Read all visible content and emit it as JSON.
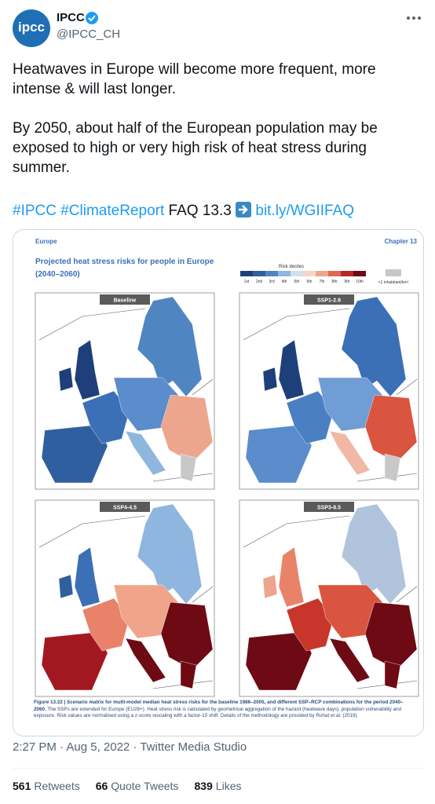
{
  "header": {
    "avatar_label": "ipcc",
    "name": "IPCC",
    "handle": "@IPCC_CH"
  },
  "tweet": {
    "paragraphs": [
      "Heatwaves in Europe will become more frequent, more intense & will last longer.",
      "By 2050, about half of the European population may be exposed to high or very high risk of heat stress during summer."
    ],
    "links": {
      "hashtags": "#IPCC #ClimateReport",
      "faq": "FAQ 13.3",
      "url": "bit.ly/WGIIFAQ"
    }
  },
  "image": {
    "region": "Europe",
    "chapter": "Chapter 13",
    "title": [
      "Projected heat stress risks for people in Europe",
      "(2040–2060)"
    ],
    "legend": {
      "title": "Risk deciles",
      "labels": [
        "1st",
        "2nd",
        "3rd",
        "4th",
        "5th",
        "6th",
        "7th",
        "8th",
        "9th",
        "10th"
      ],
      "colors": [
        "#1f3f7a",
        "#2f5f9e",
        "#4f86c2",
        "#8fb6df",
        "#cfe0ee",
        "#f6d5c8",
        "#eda58e",
        "#dc6a52",
        "#b8292a",
        "#6e0a14"
      ],
      "na_label": "<1 inhabitant/km²",
      "na_color": "#c8c8c8"
    },
    "panels": [
      "Baseline",
      "SSP1-2.6",
      "SSP4-4.5",
      "SSP3-8.5"
    ],
    "caption": {
      "bold": "Figure 13.22 | Scenario matrix for multi-model median heat stress risks for the baseline 1986–2005, and different SSP–RCP combinations for the period 2040–2060.",
      "text": " The SSPs are extended for Europe (EU28+). Heat stress risk is calculated by geometrical aggregation of the hazard (heatwave days), population vulnerability and exposure. Risk values are normalised using a z-score rescaling with a factor-10 shift. Details of the methodology are provided by Rohat et al. (2019)."
    }
  },
  "footer": {
    "timestamp": "2:27 PM · Aug 5, 2022 · Twitter Media Studio",
    "stats": [
      {
        "count": "561",
        "label": "Retweets"
      },
      {
        "count": "66",
        "label": "Quote Tweets"
      },
      {
        "count": "839",
        "label": "Likes"
      }
    ]
  }
}
